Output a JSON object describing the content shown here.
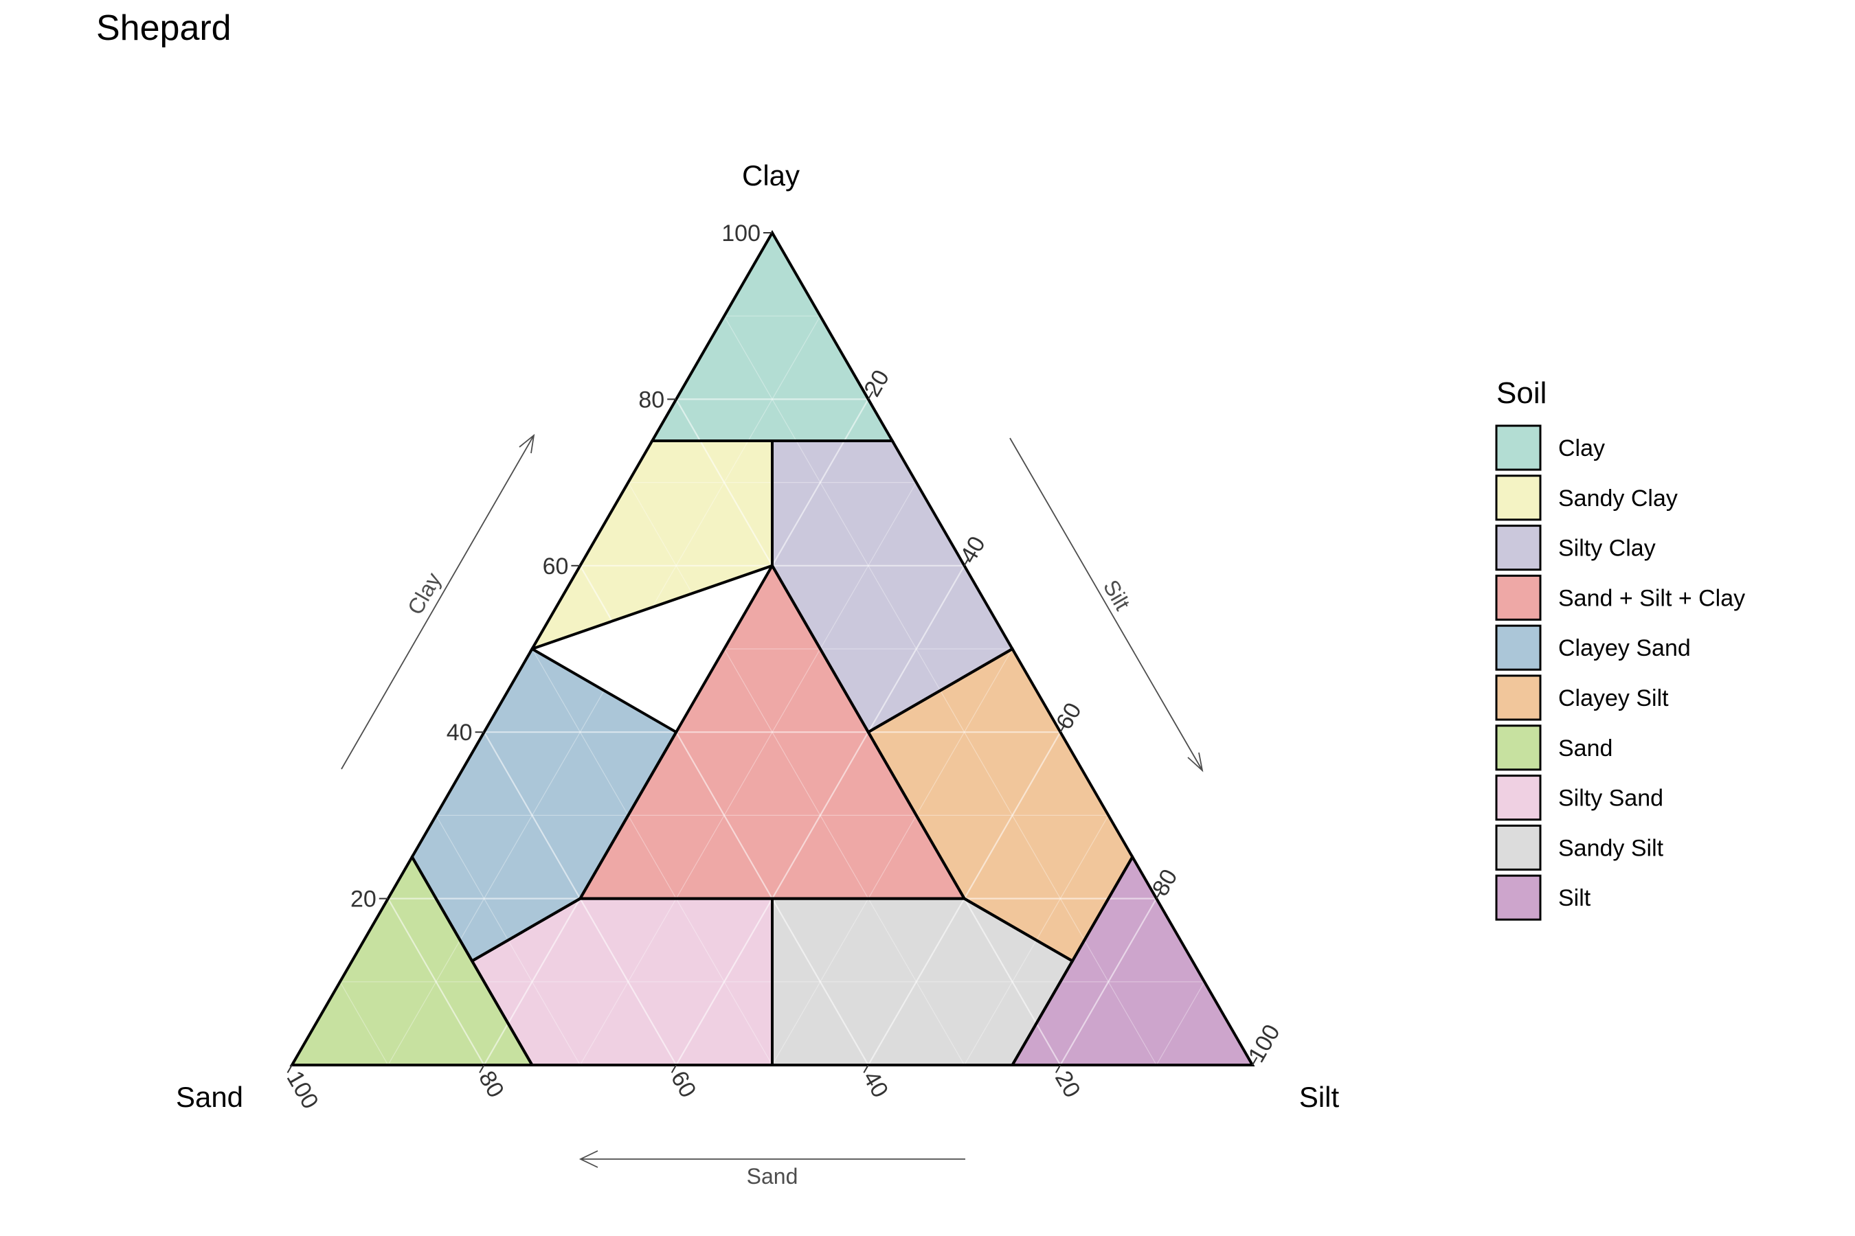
{
  "title": "Shepard",
  "chart_data": {
    "type": "ternary",
    "title": "Shepard",
    "axes": {
      "top": "Clay",
      "left": "Sand",
      "right": "Silt"
    },
    "arrow_labels": {
      "clay": "Clay",
      "silt": "Silt",
      "sand": "Sand"
    },
    "ticks": [
      20,
      40,
      60,
      80,
      100
    ],
    "grid": true,
    "legend": {
      "title": "Soil",
      "position": "right"
    },
    "regions": [
      {
        "name": "Clay",
        "color": "#b3ddd3",
        "vertices": [
          [
            100,
            0,
            0
          ],
          [
            75,
            25,
            0
          ],
          [
            75,
            0,
            25
          ]
        ]
      },
      {
        "name": "Sandy Clay",
        "color": "#f4f3c4",
        "vertices": [
          [
            75,
            25,
            0
          ],
          [
            75,
            12.5,
            12.5
          ],
          [
            60,
            20,
            20
          ],
          [
            50,
            50,
            0
          ]
        ]
      },
      {
        "name": "Silty Clay",
        "color": "#cbc8dc",
        "vertices": [
          [
            75,
            12.5,
            12.5
          ],
          [
            75,
            0,
            25
          ],
          [
            50,
            0,
            50
          ],
          [
            40,
            20,
            40
          ],
          [
            60,
            20,
            20
          ]
        ]
      },
      {
        "name": "Sand + Silt + Clay",
        "color": "#eea8a6",
        "vertices": [
          [
            60,
            20,
            20
          ],
          [
            20,
            60,
            20
          ],
          [
            20,
            20,
            60
          ]
        ]
      },
      {
        "name": "Clayey Sand",
        "color": "#abc6d8",
        "vertices": [
          [
            50,
            50,
            0
          ],
          [
            40,
            40,
            20
          ],
          [
            20,
            60,
            20
          ],
          [
            12.5,
            75,
            12.5
          ],
          [
            25,
            75,
            0
          ]
        ]
      },
      {
        "name": "Clayey Silt",
        "color": "#f1c69b",
        "vertices": [
          [
            50,
            0,
            50
          ],
          [
            25,
            0,
            75
          ],
          [
            12.5,
            12.5,
            75
          ],
          [
            20,
            20,
            60
          ],
          [
            40,
            20,
            40
          ]
        ]
      },
      {
        "name": "Sand",
        "color": "#c7e1a0",
        "vertices": [
          [
            25,
            75,
            0
          ],
          [
            12.5,
            75,
            12.5
          ],
          [
            0,
            75,
            25
          ],
          [
            0,
            100,
            0
          ]
        ]
      },
      {
        "name": "Silty Sand",
        "color": "#efd0e2",
        "vertices": [
          [
            12.5,
            75,
            12.5
          ],
          [
            20,
            60,
            20
          ],
          [
            20,
            40,
            40
          ],
          [
            0,
            50,
            50
          ],
          [
            0,
            75,
            25
          ]
        ]
      },
      {
        "name": "Sandy Silt",
        "color": "#dcdcdc",
        "vertices": [
          [
            20,
            40,
            40
          ],
          [
            20,
            20,
            60
          ],
          [
            12.5,
            12.5,
            75
          ],
          [
            0,
            25,
            75
          ],
          [
            0,
            50,
            50
          ]
        ]
      },
      {
        "name": "Silt",
        "color": "#cda5cc",
        "vertices": [
          [
            25,
            0,
            75
          ],
          [
            0,
            0,
            100
          ],
          [
            0,
            25,
            75
          ]
        ]
      }
    ]
  }
}
